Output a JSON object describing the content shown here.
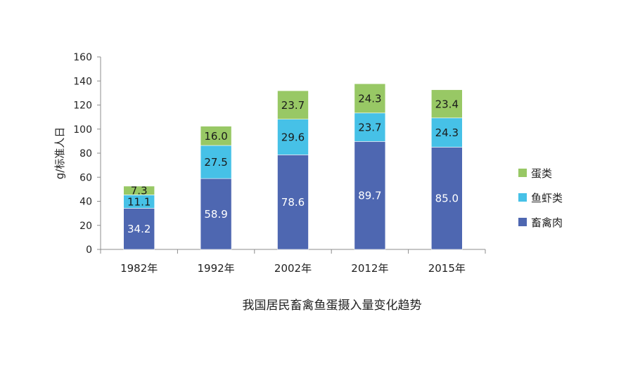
{
  "chart_data": {
    "type": "bar",
    "stacked": true,
    "title": "我国居民畜禽鱼蛋摄入量变化趋势",
    "xlabel": "",
    "ylabel": "g/标准人日",
    "categories": [
      "1982年",
      "1992年",
      "2002年",
      "2012年",
      "2015年"
    ],
    "ylim": [
      0,
      160
    ],
    "yticks": [
      0,
      20,
      40,
      60,
      80,
      100,
      120,
      140,
      160
    ],
    "grid": false,
    "legend_position": "right",
    "series": [
      {
        "name": "畜禽肉",
        "values": [
          34.2,
          58.9,
          78.6,
          89.7,
          85.0
        ],
        "labels": [
          "34.2",
          "58.9",
          "78.6",
          "89.7",
          "85.0"
        ],
        "color": "#4e67b1",
        "label_color": "#ffffff"
      },
      {
        "name": "鱼虾类",
        "values": [
          11.1,
          27.5,
          29.6,
          23.7,
          24.3
        ],
        "labels": [
          "11.1",
          "27.5",
          "29.6",
          "23.7",
          "24.3"
        ],
        "color": "#46c1e7",
        "label_color": "#1a1a1a"
      },
      {
        "name": "蛋类",
        "values": [
          7.3,
          16.0,
          23.7,
          24.3,
          23.4
        ],
        "labels": [
          "7.3",
          "16.0",
          "23.7",
          "24.3",
          "23.4"
        ],
        "color": "#98c865",
        "label_color": "#1a1a1a"
      }
    ],
    "legend_order": [
      "蛋类",
      "鱼虾类",
      "畜禽肉"
    ]
  }
}
